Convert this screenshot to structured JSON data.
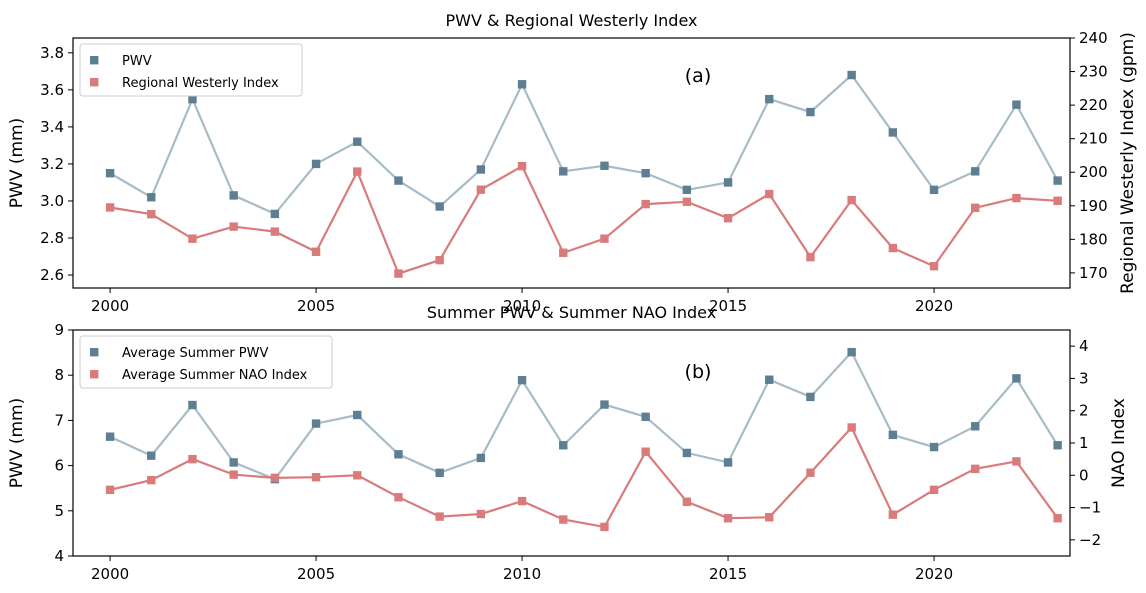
{
  "chart_data": [
    {
      "type": "line",
      "title": "PWV & Regional Westerly Index",
      "panel_label": "(a)",
      "x": [
        2000,
        2001,
        2002,
        2003,
        2004,
        2005,
        2006,
        2007,
        2008,
        2009,
        2010,
        2011,
        2012,
        2013,
        2014,
        2015,
        2016,
        2017,
        2018,
        2019,
        2020,
        2021,
        2022,
        2023
      ],
      "xlim": [
        1999.1,
        2023.3
      ],
      "x_ticks": [
        2000,
        2005,
        2010,
        2015,
        2020
      ],
      "ylabel_left": "PWV (mm)",
      "ylabel_right": "Regional Westerly Index (gpm)",
      "ylim_left": [
        2.53,
        3.88
      ],
      "ylim_right": [
        165.5,
        240.0
      ],
      "yticks_left": [
        "2.6",
        "2.8",
        "3.0",
        "3.2",
        "3.4",
        "3.6",
        "3.8"
      ],
      "yticks_right": [
        "170",
        "180",
        "190",
        "200",
        "210",
        "220",
        "230",
        "240"
      ],
      "legend_position": "top-left",
      "series": [
        {
          "name": "PWV",
          "axis": "left",
          "line_color": "#a7bcc6",
          "marker_color": "#5e7f91",
          "values": [
            3.15,
            3.02,
            3.55,
            3.03,
            2.93,
            3.2,
            3.32,
            3.11,
            2.97,
            3.17,
            3.63,
            3.16,
            3.19,
            3.15,
            3.06,
            3.1,
            3.55,
            3.48,
            3.68,
            3.37,
            3.06,
            3.16,
            3.52,
            3.11
          ]
        },
        {
          "name": "Regional Westerly Index",
          "axis": "right",
          "line_color": "#d97b7b",
          "marker_color": "#d97b7b",
          "values": [
            189.5,
            187.5,
            180.2,
            183.8,
            182.3,
            176.3,
            200.2,
            169.8,
            173.8,
            194.8,
            201.8,
            176.0,
            180.2,
            190.5,
            191.2,
            186.3,
            193.5,
            174.7,
            191.7,
            177.4,
            172.0,
            189.4,
            192.3,
            191.5
          ]
        }
      ]
    },
    {
      "type": "line",
      "title": "Summer PWV & Summer NAO Index",
      "panel_label": "(b)",
      "x": [
        2000,
        2001,
        2002,
        2003,
        2004,
        2005,
        2006,
        2007,
        2008,
        2009,
        2010,
        2011,
        2012,
        2013,
        2014,
        2015,
        2016,
        2017,
        2018,
        2019,
        2020,
        2021,
        2022,
        2023
      ],
      "xlim": [
        1999.1,
        2023.3
      ],
      "x_ticks": [
        2000,
        2005,
        2010,
        2015,
        2020
      ],
      "ylabel_left": "PWV (mm)",
      "ylabel_right": "NAO Index",
      "ylim_left": [
        4.0,
        9.0
      ],
      "ylim_right": [
        -2.5,
        4.5
      ],
      "yticks_left": [
        "4",
        "5",
        "6",
        "7",
        "8",
        "9"
      ],
      "yticks_right": [
        "−2",
        "−1",
        "0",
        "1",
        "2",
        "3",
        "4"
      ],
      "legend_position": "top-left",
      "series": [
        {
          "name": "Average Summer PWV",
          "axis": "left",
          "line_color": "#a7bcc6",
          "marker_color": "#5e7f91",
          "values": [
            6.64,
            6.22,
            7.34,
            6.07,
            5.7,
            6.93,
            7.12,
            6.25,
            5.84,
            6.17,
            7.89,
            6.45,
            7.35,
            7.08,
            6.28,
            6.07,
            7.9,
            7.52,
            8.51,
            6.68,
            6.41,
            6.87,
            7.93,
            6.45
          ]
        },
        {
          "name": "Average Summer NAO Index",
          "axis": "right",
          "line_color": "#d97b7b",
          "marker_color": "#d97b7b",
          "values": [
            -0.45,
            -0.15,
            0.5,
            0.02,
            -0.08,
            -0.06,
            0.0,
            -0.68,
            -1.28,
            -1.2,
            -0.8,
            -1.37,
            -1.6,
            0.73,
            -0.82,
            -1.33,
            -1.3,
            0.08,
            1.48,
            -1.22,
            -0.45,
            0.2,
            0.43,
            -1.33
          ]
        }
      ]
    }
  ]
}
